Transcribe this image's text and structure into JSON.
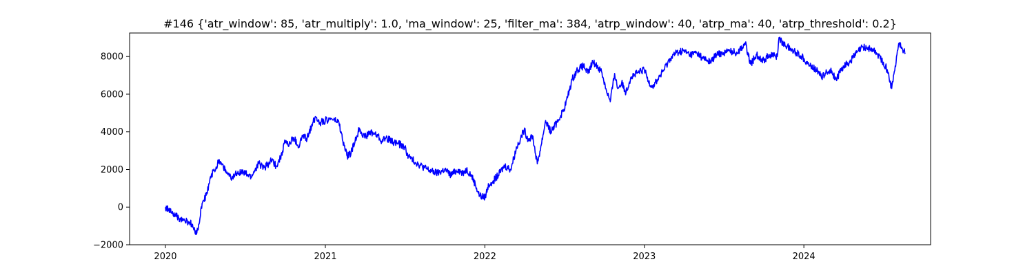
{
  "chart_data": {
    "type": "line",
    "title": "#146 {'atr_window': 85, 'atr_multiply': 1.0, 'ma_window': 25, 'filter_ma': 384, 'atrp_window': 40, 'atrp_ma': 40, 'atrp_threshold': 0.2}",
    "xlabel": "",
    "ylabel": "",
    "grid": false,
    "x_axis_type": "date",
    "xlim": [
      "2019-10-11",
      "2024-10-17"
    ],
    "ylim": [
      -2000,
      9250
    ],
    "x_ticks": [
      {
        "value": "2020-01-01",
        "label": "2020"
      },
      {
        "value": "2021-01-01",
        "label": "2021"
      },
      {
        "value": "2022-01-01",
        "label": "2022"
      },
      {
        "value": "2023-01-01",
        "label": "2023"
      },
      {
        "value": "2024-01-01",
        "label": "2024"
      }
    ],
    "y_ticks": [
      {
        "value": -2000,
        "label": "−2000"
      },
      {
        "value": 0,
        "label": "0"
      },
      {
        "value": 2000,
        "label": "2000"
      },
      {
        "value": 4000,
        "label": "4000"
      },
      {
        "value": 6000,
        "label": "6000"
      },
      {
        "value": 8000,
        "label": "8000"
      }
    ],
    "series": [
      {
        "color": "#0000ff",
        "points": [
          [
            "2020-01-01",
            0
          ],
          [
            "2020-01-15",
            -300
          ],
          [
            "2020-02-01",
            -600
          ],
          [
            "2020-02-15",
            -750
          ],
          [
            "2020-03-01",
            -900
          ],
          [
            "2020-03-10",
            -1450
          ],
          [
            "2020-03-18",
            -900
          ],
          [
            "2020-03-25",
            200
          ],
          [
            "2020-04-05",
            700
          ],
          [
            "2020-04-15",
            1700
          ],
          [
            "2020-04-25",
            2000
          ],
          [
            "2020-05-01",
            2500
          ],
          [
            "2020-05-10",
            2300
          ],
          [
            "2020-05-20",
            1800
          ],
          [
            "2020-06-01",
            1500
          ],
          [
            "2020-06-15",
            1900
          ],
          [
            "2020-07-01",
            1800
          ],
          [
            "2020-07-15",
            1600
          ],
          [
            "2020-08-01",
            2300
          ],
          [
            "2020-08-15",
            2100
          ],
          [
            "2020-09-01",
            2500
          ],
          [
            "2020-09-10",
            2200
          ],
          [
            "2020-09-20",
            2600
          ],
          [
            "2020-10-01",
            3500
          ],
          [
            "2020-10-10",
            3300
          ],
          [
            "2020-10-20",
            3700
          ],
          [
            "2020-11-01",
            3200
          ],
          [
            "2020-11-10",
            3800
          ],
          [
            "2020-11-20",
            3600
          ],
          [
            "2020-12-01",
            4400
          ],
          [
            "2020-12-10",
            4800
          ],
          [
            "2020-12-20",
            4500
          ],
          [
            "2021-01-01",
            4600
          ],
          [
            "2021-01-15",
            4700
          ],
          [
            "2021-02-01",
            4500
          ],
          [
            "2021-02-10",
            3500
          ],
          [
            "2021-02-20",
            2700
          ],
          [
            "2021-03-01",
            2900
          ],
          [
            "2021-03-10",
            3500
          ],
          [
            "2021-03-20",
            4200
          ],
          [
            "2021-04-01",
            3700
          ],
          [
            "2021-04-15",
            4000
          ],
          [
            "2021-05-01",
            3800
          ],
          [
            "2021-05-10",
            3500
          ],
          [
            "2021-05-20",
            3700
          ],
          [
            "2021-06-01",
            3500
          ],
          [
            "2021-06-15",
            3400
          ],
          [
            "2021-07-01",
            3200
          ],
          [
            "2021-07-10",
            2700
          ],
          [
            "2021-07-20",
            2500
          ],
          [
            "2021-08-01",
            2300
          ],
          [
            "2021-08-15",
            2100
          ],
          [
            "2021-09-01",
            1900
          ],
          [
            "2021-09-15",
            1800
          ],
          [
            "2021-10-01",
            2000
          ],
          [
            "2021-10-15",
            1700
          ],
          [
            "2021-11-01",
            2000
          ],
          [
            "2021-11-10",
            1800
          ],
          [
            "2021-11-20",
            2000
          ],
          [
            "2021-12-01",
            1700
          ],
          [
            "2021-12-10",
            1200
          ],
          [
            "2021-12-20",
            600
          ],
          [
            "2022-01-01",
            500
          ],
          [
            "2022-01-10",
            1200
          ],
          [
            "2022-01-20",
            1400
          ],
          [
            "2022-02-01",
            1700
          ],
          [
            "2022-02-15",
            2200
          ],
          [
            "2022-03-01",
            2000
          ],
          [
            "2022-03-15",
            3200
          ],
          [
            "2022-04-01",
            4100
          ],
          [
            "2022-04-10",
            3600
          ],
          [
            "2022-04-20",
            3800
          ],
          [
            "2022-05-01",
            2300
          ],
          [
            "2022-05-10",
            3300
          ],
          [
            "2022-05-20",
            4600
          ],
          [
            "2022-06-01",
            4000
          ],
          [
            "2022-06-15",
            4500
          ],
          [
            "2022-07-01",
            5200
          ],
          [
            "2022-07-10",
            5900
          ],
          [
            "2022-07-20",
            6800
          ],
          [
            "2022-08-01",
            7300
          ],
          [
            "2022-08-15",
            7500
          ],
          [
            "2022-08-25",
            7100
          ],
          [
            "2022-09-05",
            7700
          ],
          [
            "2022-09-15",
            7500
          ],
          [
            "2022-09-25",
            7200
          ],
          [
            "2022-10-05",
            6300
          ],
          [
            "2022-10-15",
            5600
          ],
          [
            "2022-10-25",
            7100
          ],
          [
            "2022-11-01",
            6300
          ],
          [
            "2022-11-10",
            6600
          ],
          [
            "2022-11-20",
            6100
          ],
          [
            "2022-12-01",
            6900
          ],
          [
            "2022-12-15",
            7100
          ],
          [
            "2023-01-01",
            7300
          ],
          [
            "2023-01-10",
            6700
          ],
          [
            "2023-01-20",
            6400
          ],
          [
            "2023-02-01",
            6800
          ],
          [
            "2023-02-15",
            7300
          ],
          [
            "2023-03-01",
            7900
          ],
          [
            "2023-03-15",
            8200
          ],
          [
            "2023-04-01",
            8300
          ],
          [
            "2023-04-15",
            8100
          ],
          [
            "2023-05-01",
            8200
          ],
          [
            "2023-05-15",
            7900
          ],
          [
            "2023-06-01",
            7700
          ],
          [
            "2023-06-15",
            8100
          ],
          [
            "2023-07-01",
            8200
          ],
          [
            "2023-07-15",
            8300
          ],
          [
            "2023-08-01",
            8200
          ],
          [
            "2023-08-20",
            8700
          ],
          [
            "2023-09-01",
            7600
          ],
          [
            "2023-09-15",
            8100
          ],
          [
            "2023-10-01",
            7800
          ],
          [
            "2023-10-15",
            8100
          ],
          [
            "2023-11-01",
            8000
          ],
          [
            "2023-11-05",
            9000
          ],
          [
            "2023-11-15",
            8700
          ],
          [
            "2023-12-01",
            8400
          ],
          [
            "2023-12-15",
            8200
          ],
          [
            "2024-01-01",
            7900
          ],
          [
            "2024-01-15",
            7500
          ],
          [
            "2024-02-01",
            7300
          ],
          [
            "2024-02-10",
            6900
          ],
          [
            "2024-02-20",
            7100
          ],
          [
            "2024-03-01",
            7300
          ],
          [
            "2024-03-15",
            6800
          ],
          [
            "2024-04-01",
            7500
          ],
          [
            "2024-04-15",
            7700
          ],
          [
            "2024-05-01",
            8200
          ],
          [
            "2024-05-15",
            8500
          ],
          [
            "2024-06-01",
            8400
          ],
          [
            "2024-06-15",
            8200
          ],
          [
            "2024-07-01",
            7700
          ],
          [
            "2024-07-10",
            7300
          ],
          [
            "2024-07-20",
            6300
          ],
          [
            "2024-07-28",
            7500
          ],
          [
            "2024-08-05",
            8700
          ],
          [
            "2024-08-12",
            8500
          ],
          [
            "2024-08-20",
            8200
          ]
        ]
      }
    ]
  }
}
